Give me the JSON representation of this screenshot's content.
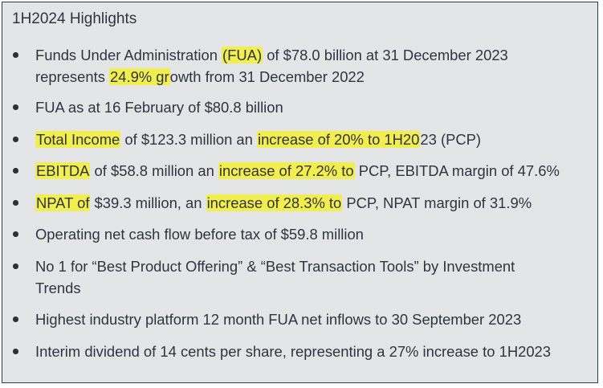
{
  "title": "1H2024 Highlights",
  "bullets": [
    {
      "lines": [
        [
          {
            "text": "Funds Under Administration ",
            "hl": false
          },
          {
            "text": "(FUA)",
            "hl": true
          },
          {
            "text": " of $78.0 billion at 31 December 2023",
            "hl": false
          }
        ],
        [
          {
            "text": "represents ",
            "hl": false
          },
          {
            "text": "24.9% gr",
            "hl": true
          },
          {
            "text": "owth from 31 December 2022",
            "hl": false
          }
        ]
      ]
    },
    {
      "lines": [
        [
          {
            "text": "FUA as at 16 February of $80.8 billion",
            "hl": false
          }
        ]
      ]
    },
    {
      "lines": [
        [
          {
            "text": "Total Income",
            "hl": true
          },
          {
            "text": " of $123.3 million an ",
            "hl": false
          },
          {
            "text": "increase of 20% to 1H20",
            "hl": true
          },
          {
            "text": "23 (PCP)",
            "hl": false
          }
        ]
      ]
    },
    {
      "lines": [
        [
          {
            "text": "EBITDA",
            "hl": true
          },
          {
            "text": " of $58.8 million an ",
            "hl": false
          },
          {
            "text": "increase of 27.2% to",
            "hl": true
          },
          {
            "text": " PCP, EBITDA margin of 47.6%",
            "hl": false
          }
        ]
      ]
    },
    {
      "lines": [
        [
          {
            "text": "NPAT of",
            "hl": true
          },
          {
            "text": " $39.3 million, an ",
            "hl": false
          },
          {
            "text": "increase of 28.3% to",
            "hl": true
          },
          {
            "text": " PCP, NPAT margin of 31.9%",
            "hl": false
          }
        ]
      ]
    },
    {
      "lines": [
        [
          {
            "text": "Operating net cash flow before tax of $59.8 million",
            "hl": false
          }
        ]
      ]
    },
    {
      "lines": [
        [
          {
            "text": "No 1 for “Best Product Offering” & “Best Transaction Tools” by Investment",
            "hl": false
          }
        ],
        [
          {
            "text": "Trends",
            "hl": false
          }
        ]
      ]
    },
    {
      "lines": [
        [
          {
            "text": "Highest industry platform 12 month FUA net inflows to 30 September 2023",
            "hl": false
          }
        ]
      ]
    },
    {
      "lines": [
        [
          {
            "text": "Interim dividend of 14 cents per share, representing a 27% increase to 1H2023",
            "hl": false
          }
        ]
      ]
    }
  ],
  "colors": {
    "panel_background": "#e4e5e7",
    "panel_border": "#2c3a55",
    "text": "#2f3442",
    "highlight": "#f2ee4e"
  }
}
